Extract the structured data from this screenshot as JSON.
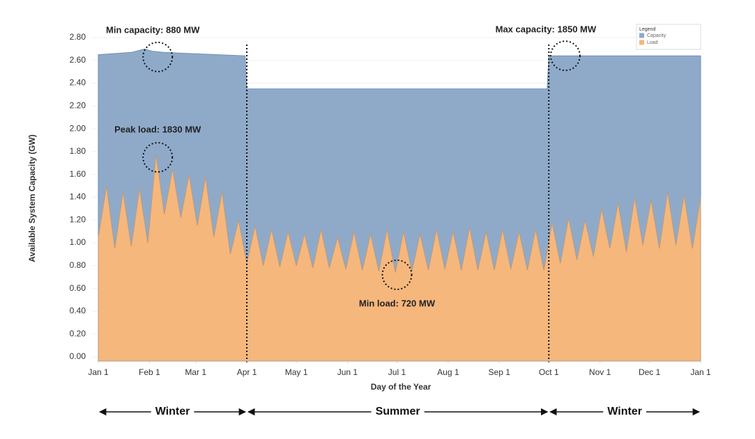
{
  "chart_data": {
    "type": "area",
    "xlabel": "Day of the Year",
    "ylabel": "Available System Capacity (GW)",
    "xlim": [
      0,
      365
    ],
    "xticks": [
      {
        "value": 0,
        "label": "Jan 1"
      },
      {
        "value": 31,
        "label": "Feb 1"
      },
      {
        "value": 59,
        "label": "Mar 1"
      },
      {
        "value": 90,
        "label": "Apr 1"
      },
      {
        "value": 120,
        "label": "May 1"
      },
      {
        "value": 151,
        "label": "Jun 1"
      },
      {
        "value": 181,
        "label": "Jul 1"
      },
      {
        "value": 212,
        "label": "Aug 1"
      },
      {
        "value": 243,
        "label": "Sep 1"
      },
      {
        "value": 273,
        "label": "Oct 1"
      },
      {
        "value": 304,
        "label": "Nov 1"
      },
      {
        "value": 334,
        "label": "Dec 1"
      },
      {
        "value": 365,
        "label": "Jan 1"
      }
    ],
    "ylim": [
      0,
      2.8
    ],
    "yticks": [
      {
        "value": 0,
        "label": "0.00"
      },
      {
        "value": 0.2,
        "label": "0.20"
      },
      {
        "value": 0.4,
        "label": "0.40"
      },
      {
        "value": 0.6,
        "label": "0.60"
      },
      {
        "value": 0.8,
        "label": "0.80"
      },
      {
        "value": 1,
        "label": "1.00"
      },
      {
        "value": 1.2,
        "label": "1.20"
      },
      {
        "value": 1.4,
        "label": "1.40"
      },
      {
        "value": 1.6,
        "label": "1.60"
      },
      {
        "value": 1.8,
        "label": "1.80"
      },
      {
        "value": 2,
        "label": "2.00"
      },
      {
        "value": 2.2,
        "label": "2.20"
      },
      {
        "value": 2.4,
        "label": "2.40"
      },
      {
        "value": 2.6,
        "label": "2.60"
      },
      {
        "value": 2.8,
        "label": "2.80"
      }
    ],
    "grid": true,
    "legend": {
      "title": "Legend",
      "position": "top-right"
    },
    "series": [
      {
        "name": "Capacity",
        "color": "#8faac9",
        "x": [
          0,
          20,
          28,
          33,
          40,
          89,
          90,
          272,
          273,
          365
        ],
        "values": [
          2.65,
          2.67,
          2.7,
          2.68,
          2.67,
          2.64,
          2.35,
          2.35,
          2.64,
          2.64
        ]
      },
      {
        "name": "Load",
        "color": "#f5b77c",
        "x": [
          0,
          5,
          10,
          15,
          20,
          25,
          30,
          35,
          40,
          45,
          50,
          55,
          60,
          65,
          70,
          75,
          80,
          85,
          90,
          95,
          100,
          105,
          110,
          115,
          120,
          125,
          130,
          135,
          140,
          145,
          150,
          155,
          160,
          165,
          170,
          175,
          180,
          185,
          190,
          195,
          200,
          205,
          210,
          215,
          220,
          225,
          230,
          235,
          240,
          245,
          250,
          255,
          260,
          265,
          270,
          275,
          280,
          285,
          290,
          295,
          300,
          305,
          310,
          315,
          320,
          325,
          330,
          335,
          340,
          345,
          350,
          355,
          360,
          365
        ],
        "values": [
          1.05,
          1.5,
          0.95,
          1.45,
          0.97,
          1.48,
          1.0,
          1.78,
          1.25,
          1.65,
          1.22,
          1.6,
          1.15,
          1.58,
          1.05,
          1.45,
          0.9,
          1.2,
          0.82,
          1.15,
          0.8,
          1.12,
          0.79,
          1.1,
          0.8,
          1.08,
          0.78,
          1.12,
          0.78,
          1.05,
          0.77,
          1.1,
          0.76,
          1.08,
          0.75,
          1.12,
          0.74,
          1.1,
          0.75,
          1.08,
          0.76,
          1.12,
          0.77,
          1.1,
          0.76,
          1.14,
          0.76,
          1.1,
          0.76,
          1.12,
          0.77,
          1.1,
          0.76,
          1.12,
          0.76,
          1.18,
          0.82,
          1.22,
          0.85,
          1.2,
          0.88,
          1.3,
          0.95,
          1.35,
          0.92,
          1.4,
          0.98,
          1.38,
          0.95,
          1.45,
          0.98,
          1.42,
          0.95,
          1.4
        ]
      }
    ],
    "annotations": [
      {
        "text": "Min capacity: 880 MW",
        "x": 36,
        "y": 2.63
      },
      {
        "text": "Peak load: 1830 MW",
        "x": 36,
        "y": 1.75
      },
      {
        "text": "Max capacity: 1850 MW",
        "x": 283,
        "y": 2.64
      },
      {
        "text": "Min load: 720 MW",
        "x": 181,
        "y": 0.72
      }
    ],
    "seasons": [
      {
        "label": "Winter",
        "from": 0,
        "to": 90
      },
      {
        "label": "Summer",
        "from": 90,
        "to": 273
      },
      {
        "label": "Winter",
        "from": 273,
        "to": 365
      }
    ]
  }
}
